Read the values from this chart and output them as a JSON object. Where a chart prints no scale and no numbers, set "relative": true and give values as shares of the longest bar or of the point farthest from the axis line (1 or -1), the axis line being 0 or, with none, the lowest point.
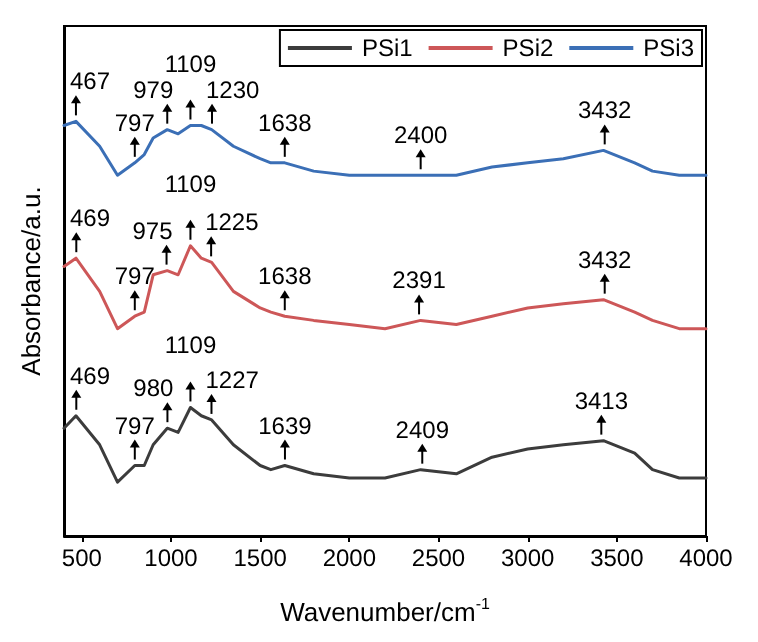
{
  "chart_data": {
    "type": "line",
    "relative": true,
    "xlabel": "Wavenumber/cm$^{-1}$",
    "ylabel": "Absorbance/a.u.",
    "xlim": [
      400,
      4000
    ],
    "xticks": [
      500,
      1000,
      1500,
      2000,
      2500,
      3000,
      3500,
      4000
    ],
    "x": [
      400,
      467,
      600,
      700,
      797,
      850,
      900,
      979,
      1040,
      1109,
      1170,
      1228,
      1350,
      1500,
      1560,
      1638,
      1800,
      2000,
      2200,
      2400,
      2600,
      2800,
      3000,
      3200,
      3425,
      3600,
      3700,
      3850,
      4000
    ],
    "series": [
      {
        "name": "PSi1",
        "color": "#3c3c3c",
        "values": [
          0.26,
          0.29,
          0.22,
          0.13,
          0.17,
          0.17,
          0.22,
          0.26,
          0.25,
          0.31,
          0.29,
          0.28,
          0.22,
          0.17,
          0.16,
          0.17,
          0.15,
          0.14,
          0.14,
          0.16,
          0.15,
          0.19,
          0.21,
          0.22,
          0.23,
          0.2,
          0.16,
          0.14,
          0.14
        ]
      },
      {
        "name": "PSi2",
        "color": "#cd5758",
        "values": [
          0.65,
          0.67,
          0.59,
          0.5,
          0.53,
          0.54,
          0.63,
          0.64,
          0.63,
          0.7,
          0.67,
          0.66,
          0.59,
          0.55,
          0.54,
          0.53,
          0.52,
          0.51,
          0.5,
          0.52,
          0.51,
          0.53,
          0.55,
          0.56,
          0.57,
          0.54,
          0.52,
          0.5,
          0.5
        ]
      },
      {
        "name": "PSi3",
        "color": "#3b6fb6",
        "values": [
          0.99,
          1.0,
          0.94,
          0.87,
          0.9,
          0.92,
          0.96,
          0.98,
          0.97,
          0.99,
          0.99,
          0.98,
          0.94,
          0.91,
          0.9,
          0.9,
          0.88,
          0.87,
          0.87,
          0.87,
          0.87,
          0.89,
          0.9,
          0.91,
          0.93,
          0.9,
          0.88,
          0.87,
          0.87
        ]
      }
    ],
    "annotations": [
      {
        "text": "469",
        "x": 469,
        "y": 0.29
      },
      {
        "text": "797",
        "x": 797,
        "y": 0.17
      },
      {
        "text": "980",
        "x": 980,
        "y": 0.26
      },
      {
        "text": "1109",
        "x": 1109,
        "y": 0.31
      },
      {
        "text": "1227",
        "x": 1227,
        "y": 0.28
      },
      {
        "text": "1639",
        "x": 1639,
        "y": 0.17
      },
      {
        "text": "2409",
        "x": 2409,
        "y": 0.16
      },
      {
        "text": "3413",
        "x": 3413,
        "y": 0.23
      },
      {
        "text": "469",
        "x": 469,
        "y": 0.67
      },
      {
        "text": "797",
        "x": 797,
        "y": 0.53
      },
      {
        "text": "975",
        "x": 975,
        "y": 0.64
      },
      {
        "text": "1109",
        "x": 1109,
        "y": 0.7
      },
      {
        "text": "1225",
        "x": 1225,
        "y": 0.66
      },
      {
        "text": "1638",
        "x": 1638,
        "y": 0.53
      },
      {
        "text": "2391",
        "x": 2391,
        "y": 0.52
      },
      {
        "text": "3432",
        "x": 3432,
        "y": 0.57
      },
      {
        "text": "467",
        "x": 467,
        "y": 1.0
      },
      {
        "text": "797",
        "x": 797,
        "y": 0.9
      },
      {
        "text": "979",
        "x": 979,
        "y": 0.98
      },
      {
        "text": "1109",
        "x": 1109,
        "y": 0.99
      },
      {
        "text": "1230",
        "x": 1230,
        "y": 0.98
      },
      {
        "text": "1638",
        "x": 1638,
        "y": 0.9
      },
      {
        "text": "2400",
        "x": 2400,
        "y": 0.87
      },
      {
        "text": "3432",
        "x": 3432,
        "y": 0.93
      }
    ],
    "legend": "top right",
    "marker": "none",
    "line_style": "solid",
    "grid": false
  }
}
